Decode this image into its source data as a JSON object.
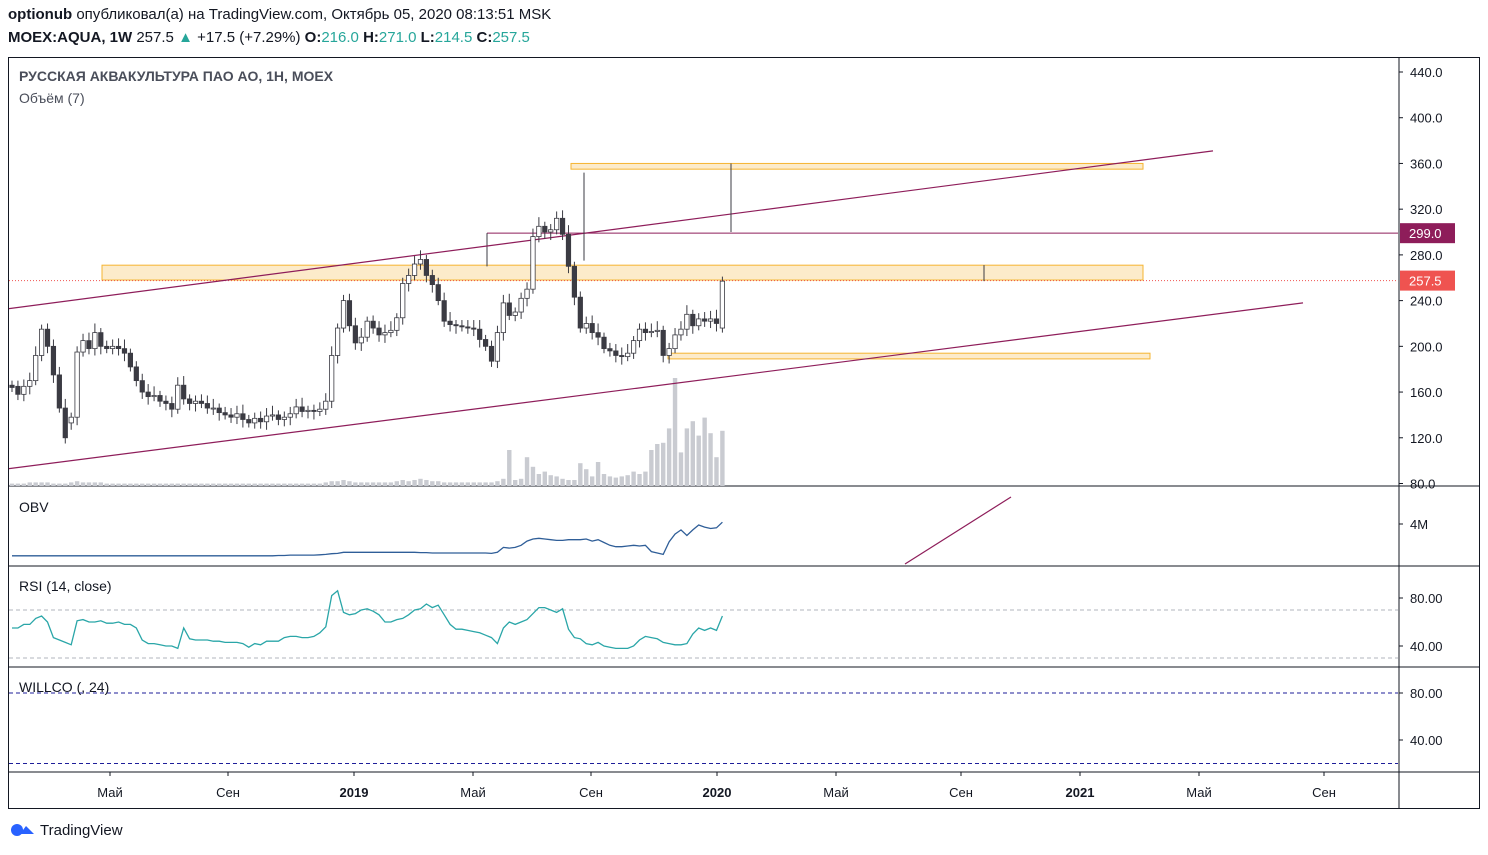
{
  "header": {
    "author": "optionub",
    "published_text": "опубликовал(а) на TradingView.com, Октябрь 05, 2020 08:13:51 MSK",
    "symbol": "MOEX:AQUA, 1W",
    "last": "257.5",
    "change": "+17.5 (+7.29%)",
    "o_label": "O:",
    "o_val": "216.0",
    "h_label": "H:",
    "h_val": "271.0",
    "l_label": "L:",
    "l_val": "214.5",
    "c_label": "C:",
    "c_val": "257.5",
    "up_arrow": "▲"
  },
  "panes": {
    "main_title": "РУССКАЯ АКВАКУЛЬТУРА ПАО АО, 1Н, MOEX",
    "volume_title": "Объём (7)",
    "obv_title": "OBV",
    "rsi_title": "RSI (14, close)",
    "willco_title": "WILLCO (, 24)"
  },
  "brand": {
    "name": "TradingView",
    "logo_icon": "tradingview-logo-icon"
  },
  "colors": {
    "candle_up": "#ffffff",
    "candle_down": "#3b3b43",
    "wick": "#3b3b43",
    "channel": "#8e1d5a",
    "zone_fill": "#fbe2b3",
    "zone_stroke": "#f5b431",
    "volume": "#c9cbd1",
    "obv": "#2f5e98",
    "rsi": "#2aa6a8",
    "willco_band": "#1e1e9a",
    "label_299": "#8e1d5a",
    "label_257": "#ef5350"
  },
  "chart_data": [
    {
      "type": "candlestick",
      "title": "РУССКАЯ АКВАКУЛЬТУРА ПАО АО, 1Н, MOEX",
      "y_ticks": [
        "440.0",
        "400.0",
        "360.0",
        "320.0",
        "280.0",
        "240.0",
        "200.0",
        "160.0",
        "120.0",
        "80.0"
      ],
      "ylim": [
        80,
        440
      ],
      "x_ticks": [
        "Май",
        "Сен",
        "2019",
        "Май",
        "Сен",
        "2020",
        "Май",
        "Сен",
        "2021",
        "Май",
        "Сен"
      ],
      "price_labels": [
        {
          "value": 299.0,
          "text": "299.0"
        },
        {
          "value": 257.5,
          "text": "257.5"
        }
      ],
      "candles_close": [
        164,
        158,
        165,
        170,
        192,
        215,
        200,
        175,
        146,
        120,
        138,
        195,
        205,
        198,
        212,
        200,
        198,
        200,
        198,
        194,
        182,
        170,
        160,
        156,
        157,
        152,
        150,
        145,
        166,
        154,
        150,
        152,
        150,
        146,
        146,
        142,
        140,
        138,
        141,
        136,
        133,
        137,
        134,
        139,
        140,
        136,
        138,
        141,
        147,
        143,
        144,
        143,
        145,
        152,
        192,
        216,
        240,
        218,
        203,
        208,
        222,
        216,
        210,
        212,
        214,
        225,
        255,
        262,
        272,
        276,
        262,
        254,
        240,
        222,
        219,
        218,
        217,
        216,
        215,
        206,
        200,
        187,
        212,
        238,
        227,
        230,
        242,
        250,
        296,
        305,
        300,
        302,
        312,
        298,
        270,
        243,
        216,
        220,
        212,
        208,
        198,
        196,
        192,
        191,
        194,
        205,
        215,
        212,
        213,
        214,
        192,
        198,
        210,
        215,
        228,
        218,
        224,
        222,
        224,
        220,
        257
      ],
      "candles_open": [
        166,
        165,
        158,
        165,
        170,
        192,
        215,
        200,
        175,
        146,
        133,
        138,
        195,
        205,
        198,
        212,
        200,
        198,
        200,
        198,
        194,
        182,
        170,
        160,
        156,
        157,
        152,
        150,
        145,
        166,
        154,
        150,
        152,
        150,
        146,
        146,
        142,
        140,
        138,
        141,
        136,
        133,
        137,
        134,
        139,
        140,
        136,
        138,
        141,
        147,
        143,
        144,
        143,
        145,
        152,
        192,
        216,
        240,
        218,
        203,
        208,
        222,
        216,
        210,
        212,
        214,
        225,
        255,
        262,
        272,
        276,
        262,
        254,
        240,
        222,
        219,
        218,
        217,
        216,
        215,
        206,
        200,
        187,
        212,
        238,
        227,
        230,
        242,
        250,
        296,
        305,
        300,
        302,
        312,
        298,
        270,
        243,
        216,
        220,
        212,
        208,
        198,
        196,
        192,
        191,
        194,
        205,
        215,
        212,
        213,
        214,
        192,
        198,
        210,
        215,
        228,
        218,
        224,
        222,
        224,
        216
      ],
      "zones": [
        [
          258,
          271
        ],
        [
          355,
          360
        ],
        [
          189,
          194
        ]
      ],
      "channel_upper": [
        [
          0,
          233
        ],
        [
          1,
          371
        ]
      ],
      "channel_lower": [
        [
          0,
          93
        ],
        [
          1,
          238
        ]
      ],
      "horizontal_level": 299.0
    },
    {
      "type": "bar",
      "title": "Объём (7)",
      "values": [
        2,
        2,
        2,
        3,
        3,
        3,
        3,
        2,
        2,
        2,
        3,
        4,
        3,
        3,
        3,
        3,
        2,
        2,
        2,
        2,
        2,
        2,
        2,
        2,
        2,
        2,
        2,
        2,
        2,
        2,
        2,
        2,
        2,
        2,
        2,
        2,
        2,
        2,
        2,
        2,
        2,
        2,
        2,
        2,
        2,
        2,
        2,
        2,
        2,
        2,
        2,
        2,
        2,
        3,
        4,
        4,
        5,
        4,
        3,
        3,
        3,
        3,
        3,
        3,
        3,
        4,
        5,
        4,
        5,
        6,
        5,
        4,
        4,
        3,
        3,
        3,
        3,
        3,
        3,
        3,
        3,
        3,
        4,
        6,
        30,
        5,
        6,
        24,
        16,
        10,
        12,
        9,
        8,
        6,
        5,
        5,
        19,
        14,
        8,
        20,
        10,
        8,
        7,
        8,
        9,
        12,
        10,
        12,
        30,
        35,
        36,
        48,
        90,
        28,
        48,
        54,
        42,
        57,
        44,
        24,
        46
      ]
    },
    {
      "type": "line",
      "title": "OBV",
      "y_ticks": [
        "4M"
      ],
      "values": [
        0.1,
        0.1,
        0.1,
        0.1,
        0.1,
        0.1,
        0.1,
        0.1,
        0.1,
        0.1,
        0.1,
        0.1,
        0.1,
        0.1,
        0.1,
        0.1,
        0.1,
        0.1,
        0.1,
        0.1,
        0.1,
        0.1,
        0.1,
        0.1,
        0.1,
        0.1,
        0.1,
        0.1,
        0.1,
        0.1,
        0.1,
        0.1,
        0.1,
        0.1,
        0.1,
        0.1,
        0.1,
        0.1,
        0.1,
        0.1,
        0.1,
        0.1,
        0.1,
        0.1,
        0.1,
        0.15,
        0.15,
        0.2,
        0.2,
        0.2,
        0.2,
        0.2,
        0.25,
        0.3,
        0.4,
        0.45,
        0.6,
        0.6,
        0.6,
        0.6,
        0.6,
        0.6,
        0.6,
        0.6,
        0.6,
        0.6,
        0.6,
        0.6,
        0.6,
        0.55,
        0.55,
        0.5,
        0.5,
        0.5,
        0.5,
        0.5,
        0.5,
        0.5,
        0.5,
        0.5,
        0.5,
        0.45,
        0.6,
        1.3,
        1.2,
        1.3,
        1.6,
        2.2,
        2.5,
        2.6,
        2.5,
        2.4,
        2.3,
        2.3,
        2.4,
        2.4,
        2.4,
        2.5,
        2.2,
        2.4,
        2.0,
        1.6,
        1.4,
        1.4,
        1.5,
        1.6,
        1.5,
        1.6,
        0.7,
        0.5,
        0.3,
        2.1,
        3.2,
        3.8,
        3.0,
        3.8,
        4.5,
        4.2,
        4.0,
        4.1,
        4.9
      ]
    },
    {
      "type": "line",
      "title": "RSI (14, close)",
      "y_ticks": [
        "80.00",
        "40.00"
      ],
      "ylim": [
        30,
        90
      ],
      "bands": [
        70,
        30
      ],
      "values": [
        55,
        55,
        58,
        58,
        63,
        65,
        60,
        47,
        45,
        43,
        41,
        61,
        62,
        60,
        60,
        61,
        59,
        59,
        60,
        58,
        58,
        55,
        45,
        42,
        42,
        41,
        40,
        40,
        38,
        55,
        46,
        45,
        45,
        45,
        44,
        44,
        43,
        43,
        43,
        42,
        39,
        42,
        41,
        44,
        44,
        44,
        47,
        48,
        48,
        47,
        47,
        48,
        51,
        56,
        82,
        86,
        68,
        66,
        67,
        70,
        71,
        69,
        66,
        60,
        60,
        62,
        63,
        66,
        70,
        71,
        75,
        72,
        74,
        66,
        58,
        54,
        54,
        53,
        52,
        51,
        49,
        47,
        42,
        55,
        60,
        58,
        60,
        62,
        67,
        72,
        72,
        70,
        68,
        71,
        54,
        47,
        46,
        42,
        41,
        43,
        40,
        39,
        38,
        38,
        38,
        40,
        45,
        48,
        47,
        46,
        43,
        42,
        41,
        41,
        42,
        50,
        55,
        53,
        55,
        53,
        65
      ]
    },
    {
      "type": "line",
      "title": "WILLCO (, 24)",
      "y_ticks": [
        "80.00",
        "40.00"
      ],
      "ylim": [
        20,
        100
      ],
      "bands": [
        80,
        20
      ]
    }
  ]
}
